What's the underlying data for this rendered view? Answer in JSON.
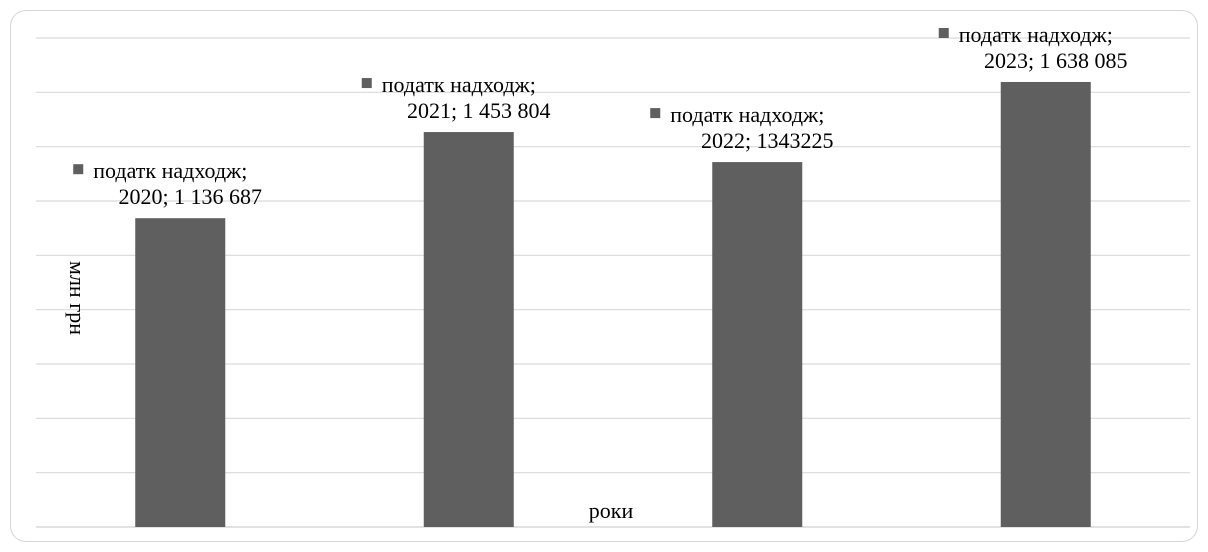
{
  "chart_data": {
    "type": "bar",
    "categories": [
      "2020",
      "2021",
      "2022",
      "2023"
    ],
    "series": [
      {
        "name": "податк надходж",
        "values": [
          1136687,
          1453804,
          1343225,
          1638085
        ],
        "color": "#5f5f5f"
      }
    ],
    "data_labels": [
      {
        "series": "податк надходж",
        "text": "2020; 1 136 687"
      },
      {
        "series": "податк надходж",
        "text": "2021; 1 453 804"
      },
      {
        "series": "податк надходж",
        "text": "2022; 1343225"
      },
      {
        "series": "податк надходж",
        "text": "2023; 1 638 085"
      }
    ],
    "title": "",
    "xlabel": "роки",
    "ylabel": "млн грн",
    "ylim": [
      0,
      1800000
    ],
    "y_gridlines": 9,
    "grid": true,
    "gridline_color": "#d9d9d9",
    "axis_tick_labels": false
  }
}
